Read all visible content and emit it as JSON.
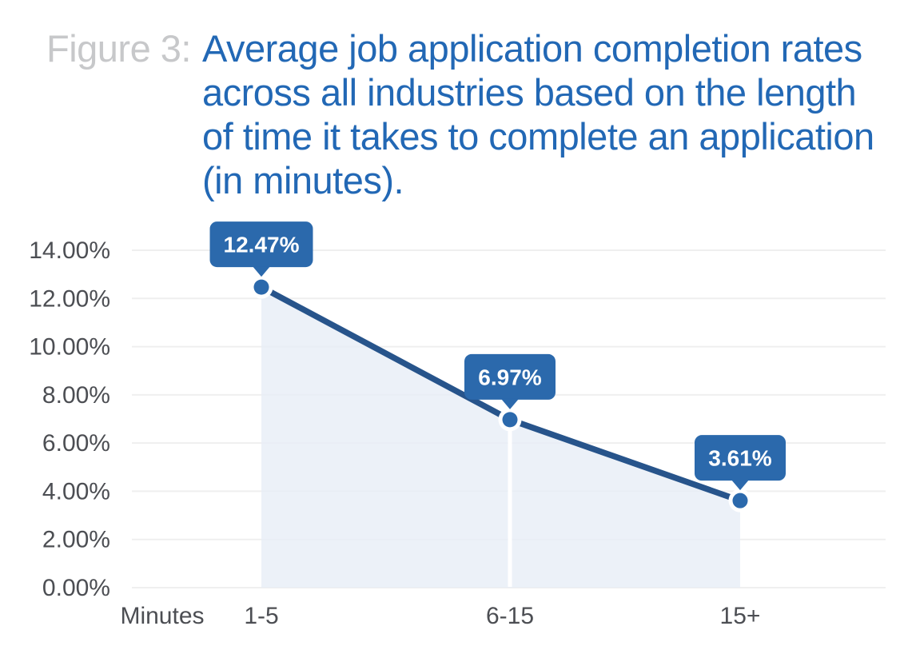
{
  "figure": {
    "label": "Figure 3:",
    "title_lines": [
      "Average job application completion rates",
      "across all industries based on the length",
      "of time it takes to complete an application",
      "(in minutes)."
    ]
  },
  "chart_data": {
    "type": "area",
    "title": "Average job application completion rates across all industries based on the length of time it takes to complete an application (in minutes).",
    "categories": [
      "1-5",
      "6-15",
      "15+"
    ],
    "values": [
      12.47,
      6.97,
      3.61
    ],
    "point_labels": [
      "12.47%",
      "6.97%",
      "3.61%"
    ],
    "x_axis_prefix": "Minutes",
    "y_ticks": [
      0,
      2,
      4,
      6,
      8,
      10,
      12,
      14
    ],
    "y_tick_labels": [
      "0.00%",
      "2.00%",
      "4.00%",
      "6.00%",
      "8.00%",
      "10.00%",
      "12.00%",
      "14.00%"
    ],
    "ylim": [
      0,
      14
    ],
    "grid": true,
    "legend_position": "none"
  },
  "colors": {
    "title_blue": "#2268b5",
    "figure_label_gray": "#c7c8ca",
    "series_line": "#27548b",
    "accent_blue": "#2b69ac",
    "marker_halo": "#ffffff",
    "area_fill": "#e7edf6",
    "gridline": "#efefef",
    "axis_text": "#4c4e53",
    "tooltip_text": "#ffffff"
  }
}
